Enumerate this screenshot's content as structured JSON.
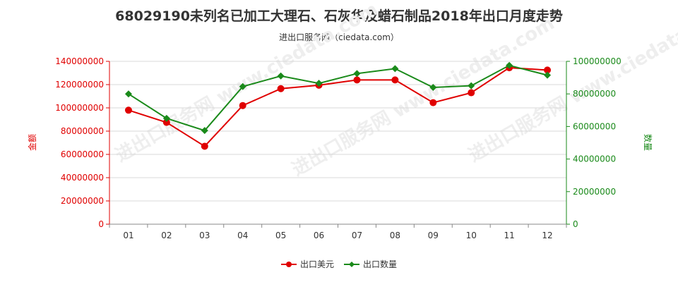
{
  "title": "68029190未列名已加工大理石、石灰华及蜡石制品2018年出口月度走势",
  "subtitle": "进出口服务网（ciedata.com）",
  "watermark": "进出口服务网 www.ciedata.com",
  "chart_data": {
    "type": "line",
    "categories": [
      "01",
      "02",
      "03",
      "04",
      "05",
      "06",
      "07",
      "08",
      "09",
      "10",
      "11",
      "12"
    ],
    "series": [
      {
        "name": "出口美元",
        "axis": "left",
        "color": "#e00000",
        "values": [
          98000000,
          87500000,
          67000000,
          102000000,
          116500000,
          119500000,
          124000000,
          124000000,
          104500000,
          113000000,
          134500000,
          132500000
        ]
      },
      {
        "name": "出口数量",
        "axis": "right",
        "color": "#1a8a1a",
        "values": [
          80000000,
          65000000,
          57500000,
          84500000,
          91000000,
          86500000,
          92500000,
          95500000,
          84000000,
          85000000,
          97500000,
          91500000
        ]
      }
    ],
    "yleft": {
      "label": "金额",
      "lim": [
        0,
        140000000
      ],
      "ticks": [
        "0",
        "20000000",
        "40000000",
        "60000000",
        "80000000",
        "100000000",
        "120000000",
        "140000000"
      ]
    },
    "yright": {
      "label": "数量",
      "lim": [
        0,
        100000000
      ],
      "ticks": [
        "0",
        "20000000",
        "40000000",
        "60000000",
        "80000000",
        "100000000"
      ]
    },
    "grid": "horizontal",
    "legend": "bottom-center"
  }
}
